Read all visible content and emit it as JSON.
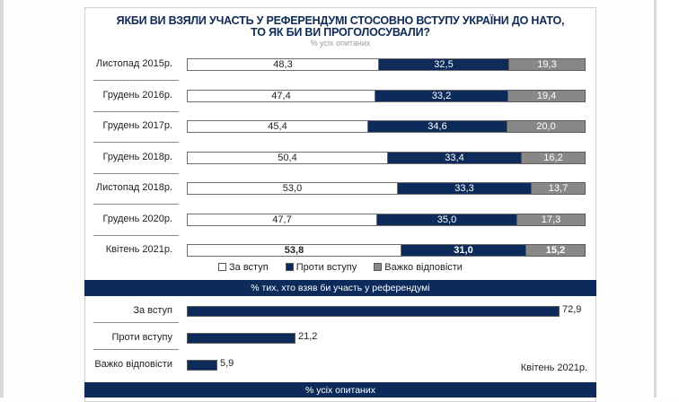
{
  "chart_data": [
    {
      "type": "bar",
      "orientation": "horizontal",
      "stacked": true,
      "title": "ЯКБИ ВИ ВЗЯЛИ УЧАСТЬ У РЕФЕРЕНДУМІ СТОСОВНО ВСТУПУ УКРАЇНИ ДО НАТО, ТО ЯК БИ ВИ ПРОГОЛОСУВАЛИ?",
      "title_lines": [
        "ЯКБИ ВИ ВЗЯЛИ УЧАСТЬ У РЕФЕРЕНДУМІ СТОСОВНО ВСТУПУ УКРАЇНИ ДО НАТО,",
        "ТО ЯК БИ ВИ ПРОГОЛОСУВАЛИ?"
      ],
      "subtitle": "% усіх опитаних",
      "categories": [
        "Листопад 2015р.",
        "Грудень 2016р.",
        "Грудень 2017р.",
        "Грудень 2018р.",
        "Листопад 2018р.",
        "Грудень 2020р.",
        "Квітень 2021р."
      ],
      "series": [
        {
          "name": "За вступ",
          "color": "#ffffff",
          "values": [
            "48,3",
            "47,4",
            "45,4",
            "50,4",
            "53,0",
            "47,7",
            "53,8"
          ]
        },
        {
          "name": "Проти вступу",
          "color": "#0c2a5a",
          "values": [
            "32,5",
            "33,2",
            "34,6",
            "33,4",
            "33,3",
            "35,0",
            "31,0"
          ]
        },
        {
          "name": "Важко відповісти",
          "color": "#888888",
          "values": [
            "19,3",
            "19,4",
            "20,0",
            "16,2",
            "13,7",
            "17,3",
            "15,2"
          ]
        }
      ],
      "highlight_last_row": true,
      "xlim": [
        0,
        100
      ],
      "legend": [
        "За вступ",
        "Проти вступу",
        "Важко відповісти"
      ],
      "legend_position": "bottom"
    },
    {
      "type": "bar",
      "orientation": "horizontal",
      "header": "% тих, хто взяв би участь у референдумі",
      "categories": [
        "За вступ",
        "Проти вступу",
        "Важко відповісти"
      ],
      "values": [
        "72,9",
        "21,2",
        "5,9"
      ],
      "color": "#0c2a5a",
      "xlim": [
        0,
        80
      ],
      "note": "Квітень 2021р."
    }
  ],
  "footer_band": "% усіх опитаних"
}
